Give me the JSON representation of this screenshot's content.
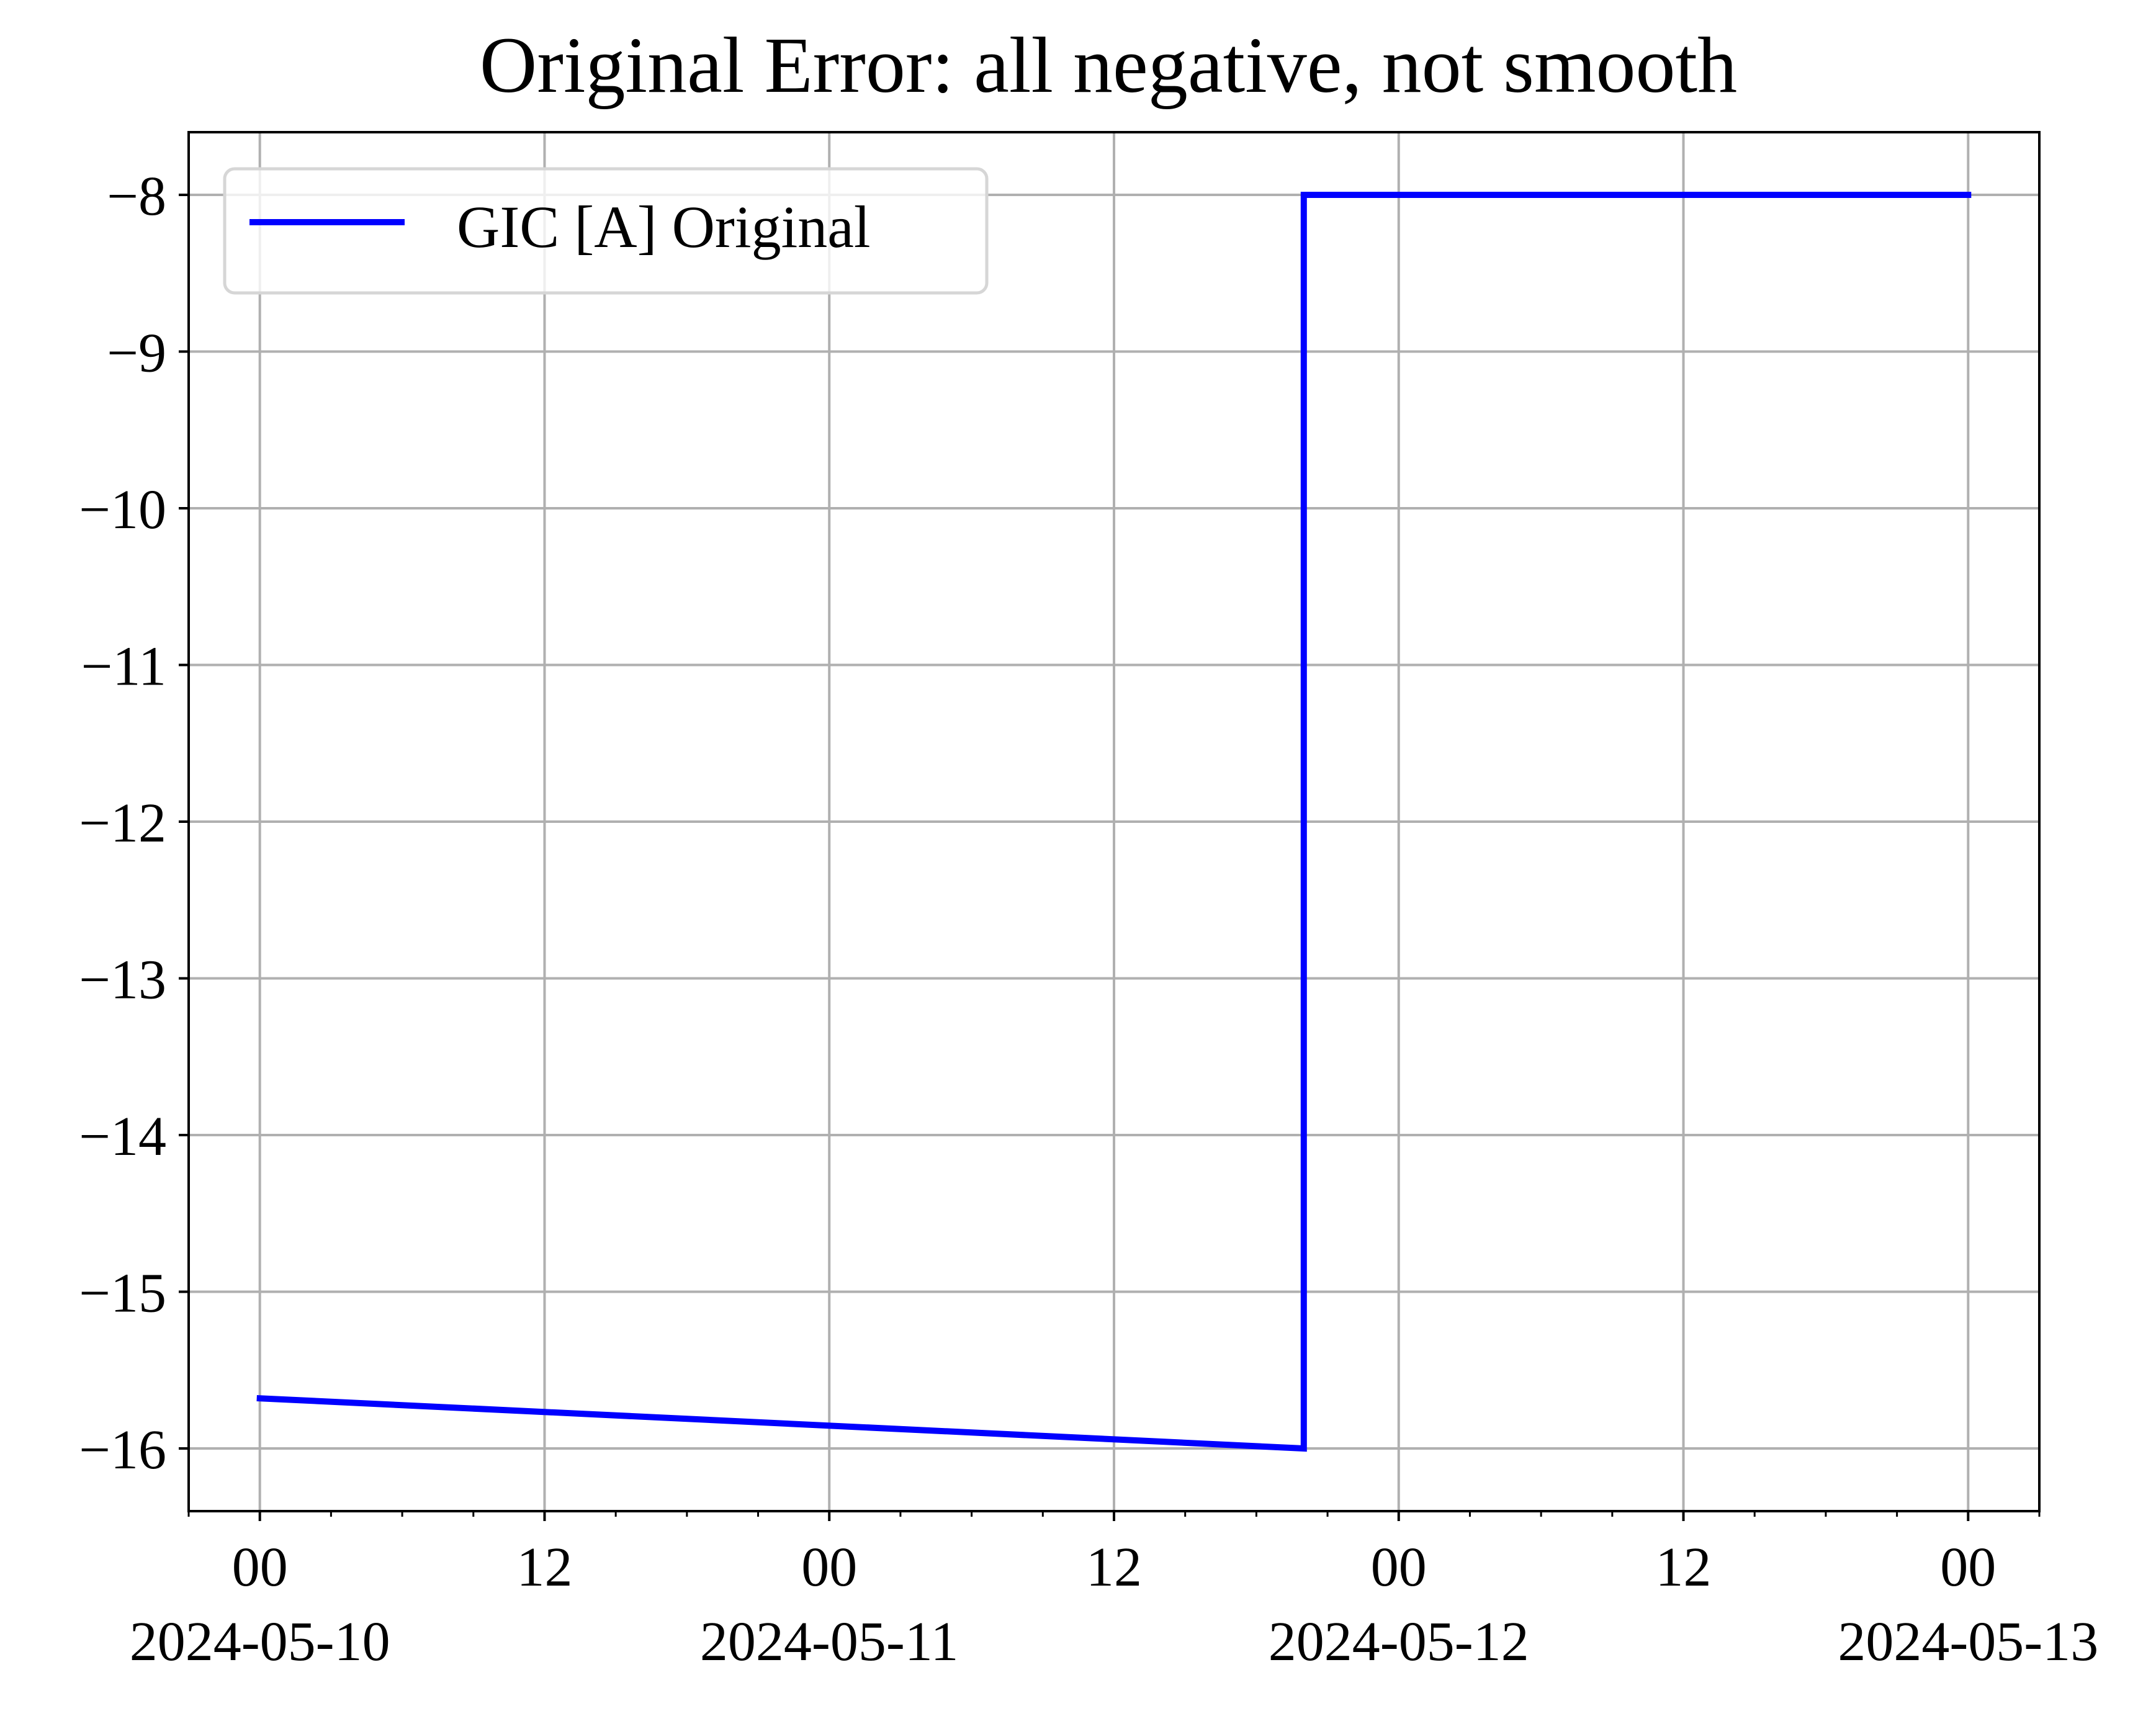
{
  "chart_data": {
    "type": "line",
    "title": "Original Error: all negative, not smooth",
    "xlabel": "",
    "ylabel": "",
    "x_axis": {
      "kind": "datetime",
      "range": [
        "2024-05-09T21:00",
        "2024-05-13T03:00"
      ],
      "major_ticks": [
        {
          "at": "2024-05-10T00:00",
          "label": "00",
          "date_label": "2024-05-10"
        },
        {
          "at": "2024-05-10T12:00",
          "label": "12",
          "date_label": ""
        },
        {
          "at": "2024-05-11T00:00",
          "label": "00",
          "date_label": "2024-05-11"
        },
        {
          "at": "2024-05-11T12:00",
          "label": "12",
          "date_label": ""
        },
        {
          "at": "2024-05-12T00:00",
          "label": "00",
          "date_label": "2024-05-12"
        },
        {
          "at": "2024-05-12T12:00",
          "label": "12",
          "date_label": ""
        },
        {
          "at": "2024-05-13T00:00",
          "label": "00",
          "date_label": "2024-05-13"
        }
      ],
      "minor_tick_interval_hours": 3
    },
    "y_axis": {
      "range": [
        -16.4,
        -7.6
      ],
      "ticks": [
        -16,
        -15,
        -14,
        -13,
        -12,
        -11,
        -10,
        -9,
        -8
      ],
      "tick_labels": [
        "−16",
        "−15",
        "−14",
        "−13",
        "−12",
        "−11",
        "−10",
        "−9",
        "−8"
      ]
    },
    "grid": true,
    "legend": {
      "placement": "upper-left"
    },
    "series": [
      {
        "name": "GIC [A] Original",
        "color": "#0000ff",
        "points": [
          {
            "x": "2024-05-10T00:00",
            "y": -15.68
          },
          {
            "x": "2024-05-11T20:00",
            "y": -16.0
          },
          {
            "x": "2024-05-11T20:00",
            "y": -8.0
          },
          {
            "x": "2024-05-13T00:00",
            "y": -8.0
          }
        ]
      }
    ]
  }
}
